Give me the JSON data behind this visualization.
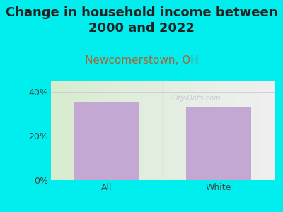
{
  "title": "Change in household income between\n2000 and 2022",
  "subtitle": "Newcomerstown, OH",
  "categories": [
    "All",
    "White"
  ],
  "values": [
    35.5,
    33.0
  ],
  "bar_color": "#c4a8d4",
  "background_color": "#00EEEE",
  "title_fontsize": 13,
  "subtitle_fontsize": 11,
  "subtitle_color": "#b06030",
  "title_color": "#222222",
  "tick_label_color": "#444444",
  "ylim": [
    0,
    45
  ],
  "yticks": [
    0,
    20,
    40
  ],
  "ytick_labels": [
    "0%",
    "20%",
    "40%"
  ],
  "watermark": "City-Data.com",
  "figsize": [
    4.0,
    3.0
  ],
  "dpi": 100
}
